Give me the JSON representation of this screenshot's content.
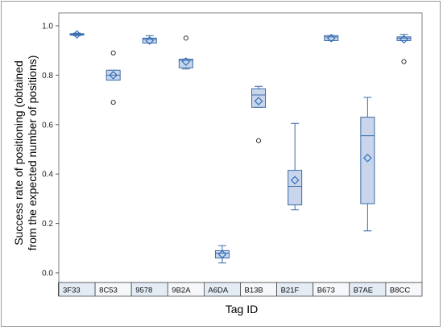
{
  "chart_data": {
    "type": "boxplot",
    "ylabel_line1": "Success rate of positioning (obtained",
    "ylabel_line2": "from the expected number of positions)",
    "xlabel": "Tag ID",
    "ylim": [
      0.0,
      1.0
    ],
    "yticks": [
      "0.0",
      "0.2",
      "0.4",
      "0.6",
      "0.8",
      "1.0"
    ],
    "grid": false,
    "categories": [
      "3F33",
      "8C53",
      "9578",
      "9B2A",
      "A6DA",
      "B13B",
      "B21F",
      "B673",
      "B7AE",
      "B8CC"
    ],
    "boxes": [
      {
        "tag": "3F33",
        "min": 0.96,
        "q1": 0.962,
        "median": 0.965,
        "q3": 0.968,
        "max": 0.97,
        "mean": 0.965,
        "outliers": []
      },
      {
        "tag": "8C53",
        "min": 0.78,
        "q1": 0.78,
        "median": 0.8,
        "q3": 0.82,
        "max": 0.82,
        "mean": 0.8,
        "outliers": [
          0.89,
          0.69
        ]
      },
      {
        "tag": "9578",
        "min": 0.93,
        "q1": 0.93,
        "median": 0.945,
        "q3": 0.95,
        "max": 0.96,
        "mean": 0.94,
        "outliers": []
      },
      {
        "tag": "9B2A",
        "min": 0.825,
        "q1": 0.83,
        "median": 0.86,
        "q3": 0.865,
        "max": 0.865,
        "mean": 0.855,
        "outliers": [
          0.95
        ]
      },
      {
        "tag": "A6DA",
        "min": 0.04,
        "q1": 0.06,
        "median": 0.08,
        "q3": 0.09,
        "max": 0.11,
        "mean": 0.075,
        "outliers": []
      },
      {
        "tag": "B13B",
        "min": 0.67,
        "q1": 0.67,
        "median": 0.72,
        "q3": 0.745,
        "max": 0.755,
        "mean": 0.695,
        "outliers": [
          0.535
        ]
      },
      {
        "tag": "B21F",
        "min": 0.255,
        "q1": 0.275,
        "median": 0.35,
        "q3": 0.415,
        "max": 0.605,
        "mean": 0.375,
        "outliers": []
      },
      {
        "tag": "B673",
        "min": 0.94,
        "q1": 0.94,
        "median": 0.955,
        "q3": 0.96,
        "max": 0.96,
        "mean": 0.95,
        "outliers": []
      },
      {
        "tag": "B7AE",
        "min": 0.17,
        "q1": 0.28,
        "median": 0.555,
        "q3": 0.63,
        "max": 0.71,
        "mean": 0.465,
        "outliers": []
      },
      {
        "tag": "B8CC",
        "min": 0.94,
        "q1": 0.94,
        "median": 0.95,
        "q3": 0.955,
        "max": 0.965,
        "mean": 0.945,
        "outliers": [
          0.855
        ]
      }
    ],
    "colors": {
      "box_fill": "#c8d5ea",
      "box_stroke": "#3c6aa8",
      "whisker": "#3c6aa8",
      "mean_marker": "#2e6fc0",
      "outlier": "#333333",
      "tag_cell_fill": "#f5f7fa",
      "tag_cell_fill_alt": "#e3ebf5"
    }
  }
}
